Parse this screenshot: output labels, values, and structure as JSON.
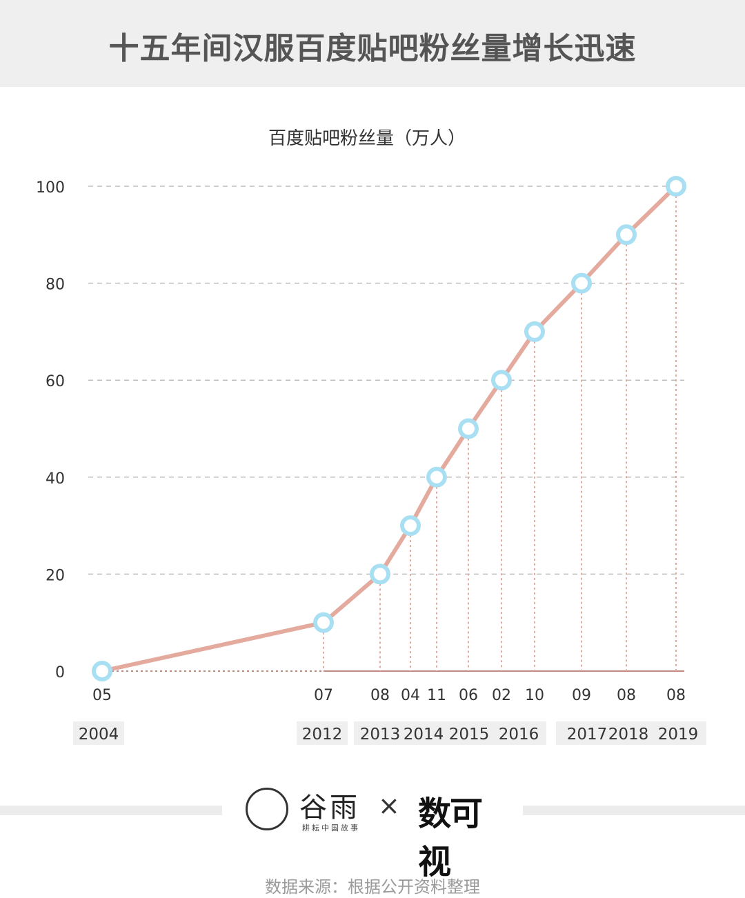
{
  "header": {
    "title": "十五年间汉服百度贴吧粉丝量增长迅速"
  },
  "chart_data": {
    "type": "line",
    "title": "百度贴吧粉丝量（万人）",
    "ylim": [
      0,
      100
    ],
    "yticks": [
      0,
      20,
      40,
      60,
      80,
      100
    ],
    "grid": true,
    "series": [
      {
        "x": [
          "2004-05",
          "2012-07",
          "2013-08",
          "2014-04",
          "2014-11",
          "2015-06",
          "2016-02",
          "2016-10",
          "2017-09",
          "2018-08",
          "2019-08"
        ],
        "values": [
          0,
          10,
          20,
          30,
          40,
          50,
          60,
          70,
          80,
          90,
          100
        ]
      }
    ],
    "month_labels": [
      "05",
      "07",
      "08",
      "04",
      "11",
      "06",
      "02",
      "10",
      "09",
      "08",
      "08"
    ],
    "year_groups": [
      {
        "years": [
          "2004"
        ]
      },
      {
        "years": [
          "2012"
        ]
      },
      {
        "years": [
          "2013",
          "2014",
          "2015",
          "2016"
        ]
      },
      {
        "years": [
          "2017",
          "2018",
          "2019"
        ]
      }
    ],
    "colors": {
      "line": "#e3aa9d",
      "marker_stroke": "#a9dff2",
      "grid": "#bdbdbd",
      "axis": "#c08a80"
    }
  },
  "footer": {
    "logo1_name": "谷雨",
    "logo1_tag": "耕耘中国故事",
    "separator": "×",
    "logo2_name": "数可视",
    "source": "数据来源：根据公开资料整理"
  }
}
